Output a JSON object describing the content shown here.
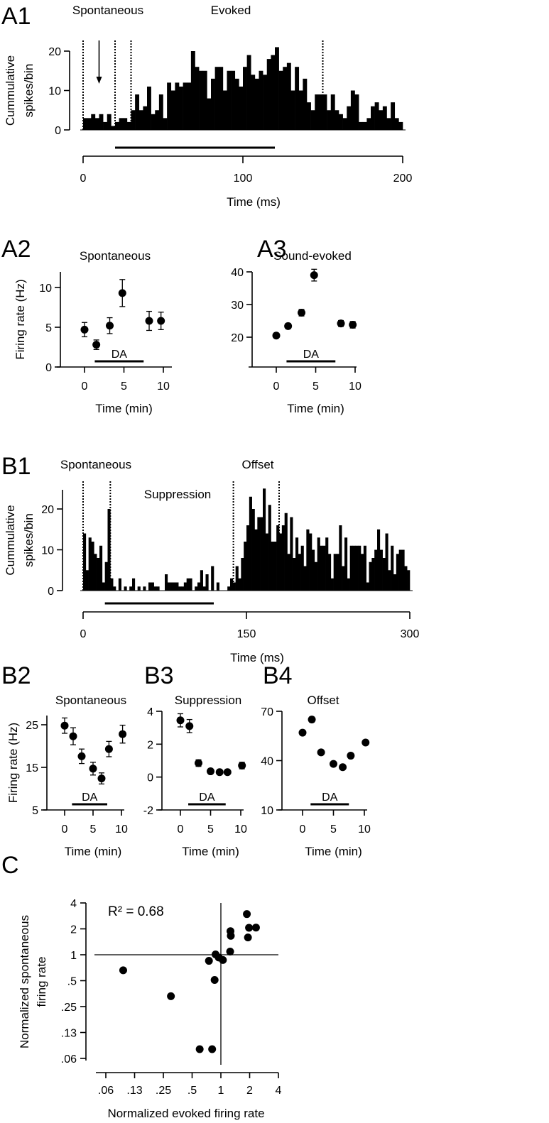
{
  "chart_data": [
    {
      "panel": "A1",
      "type": "bar",
      "xlabel": "Time (ms)",
      "ylabel_lines": [
        "Cummulative",
        "spikes/bin"
      ],
      "xlim": [
        0,
        200
      ],
      "xticks": [
        0,
        100,
        200
      ],
      "xtick_labels": [
        "0",
        "100",
        "200"
      ],
      "ylim": [
        0,
        20
      ],
      "yticks": [
        0,
        10,
        20
      ],
      "ytick_labels": [
        "0",
        "10",
        "20"
      ],
      "bin_width_ms": 2.5,
      "values": [
        3,
        3,
        4,
        3,
        4,
        2,
        4,
        1,
        2,
        3,
        3,
        2,
        5,
        9,
        5,
        6,
        11,
        4,
        5,
        9,
        3,
        12,
        10,
        12,
        11,
        12,
        12,
        20,
        16,
        15,
        15,
        8,
        13,
        16,
        16,
        10,
        15,
        15,
        13,
        11,
        16,
        19,
        14,
        13,
        15,
        14,
        18,
        19,
        21,
        15,
        16,
        17,
        10,
        16,
        10,
        13,
        7,
        5,
        9,
        9,
        9,
        5,
        9,
        5,
        4,
        3,
        6,
        10,
        9,
        2,
        2,
        3,
        6,
        7,
        5,
        6,
        3,
        7,
        3,
        2
      ],
      "annotations": [
        "Spontaneous",
        "Evoked"
      ],
      "dashed_lines_ms": [
        0,
        20,
        30,
        150
      ],
      "arrow_ms": 10,
      "stimulus_bar_ms": [
        20,
        120
      ]
    },
    {
      "panel": "A2",
      "type": "scatter",
      "title": "Spontaneous",
      "xlabel": "Time (min)",
      "ylabel": "Firing rate (Hz)",
      "xticks": [
        0,
        5,
        10
      ],
      "xtick_labels": [
        "0",
        "5",
        "10"
      ],
      "yticks": [
        0,
        5,
        10
      ],
      "ytick_labels": [
        "0",
        "5",
        "10"
      ],
      "x": [
        0,
        1.5,
        3.2,
        4.8,
        8.2,
        9.7
      ],
      "y": [
        4.7,
        2.8,
        5.2,
        9.3,
        5.8,
        5.8
      ],
      "err": [
        0.9,
        0.6,
        1.0,
        1.7,
        1.2,
        1.1
      ],
      "drug_label": "DA",
      "drug_min": [
        1.3,
        7.5
      ]
    },
    {
      "panel": "A3",
      "type": "scatter",
      "title": "Sound-evoked",
      "xlabel": "Time (min)",
      "xticks": [
        0,
        5,
        10
      ],
      "xtick_labels": [
        "0",
        "5",
        "10"
      ],
      "yticks": [
        20,
        30,
        40
      ],
      "ytick_labels": [
        "20",
        "30",
        "40"
      ],
      "x": [
        0,
        1.5,
        3.2,
        4.8,
        8.2,
        9.7
      ],
      "y": [
        20.5,
        23.4,
        27.5,
        39.0,
        24.2,
        23.8
      ],
      "err": [
        0.6,
        0.8,
        1.0,
        1.8,
        0.9,
        1.0
      ],
      "drug_label": "DA",
      "drug_min": [
        1.3,
        7.5
      ]
    },
    {
      "panel": "B1",
      "type": "bar",
      "xlabel": "Time (ms)",
      "ylabel_lines": [
        "Cummulative",
        "spikes/bin"
      ],
      "xlim": [
        0,
        300
      ],
      "xticks": [
        0,
        150,
        300
      ],
      "xtick_labels": [
        "0",
        "150",
        "300"
      ],
      "ylim": [
        0,
        20
      ],
      "yticks": [
        0,
        10,
        20
      ],
      "ytick_labels": [
        "0",
        "10",
        "20"
      ],
      "bin_width_ms": 2.5,
      "values": [
        14,
        5,
        13,
        12,
        9,
        8,
        11,
        2,
        7,
        20,
        3,
        1,
        0,
        3,
        0,
        1,
        0,
        1,
        3,
        0,
        1,
        0,
        1,
        0,
        2,
        2,
        1,
        1,
        0,
        0,
        4,
        2,
        2,
        2,
        2,
        1,
        1,
        2,
        3,
        3,
        0,
        1,
        2,
        5,
        1,
        4,
        0,
        6,
        0,
        2,
        0,
        0,
        0,
        1,
        3,
        2,
        6,
        3,
        8,
        12,
        16,
        23,
        20,
        15,
        18,
        18,
        25,
        14,
        21,
        12,
        12,
        16,
        14,
        16,
        19,
        9,
        18,
        8,
        13,
        9,
        11,
        6,
        15,
        14,
        10,
        7,
        13,
        11,
        11,
        13,
        9,
        3,
        9,
        9,
        16,
        6,
        13,
        3,
        11,
        11,
        11,
        11,
        9,
        11,
        2,
        7,
        8,
        10,
        15,
        10,
        8,
        14,
        5,
        11,
        4,
        9,
        10,
        10,
        6,
        5
      ],
      "annotations": [
        "Spontaneous",
        "Offset",
        "Suppression"
      ],
      "dashed_lines_ms": [
        0,
        25,
        138,
        180
      ],
      "stimulus_bar_ms": [
        20,
        120
      ]
    },
    {
      "panel": "B2",
      "type": "scatter",
      "title": "Spontaneous",
      "xlabel": "Time (min)",
      "ylabel": "Firing rate (Hz)",
      "xticks": [
        0,
        5,
        10
      ],
      "xtick_labels": [
        "0",
        "5",
        "10"
      ],
      "yticks": [
        5,
        15,
        25
      ],
      "ytick_labels": [
        "5",
        "15",
        "25"
      ],
      "x": [
        0,
        1.5,
        3,
        5,
        6.5,
        7.8,
        10.2
      ],
      "y": [
        24.8,
        22.3,
        17.6,
        14.7,
        12.4,
        19.3,
        22.8
      ],
      "err": [
        1.8,
        2.0,
        1.7,
        1.5,
        1.3,
        1.8,
        2.1
      ],
      "drug_label": "DA",
      "drug_min": [
        1.3,
        7.5
      ]
    },
    {
      "panel": "B3",
      "type": "scatter",
      "title": "Suppression",
      "xlabel": "Time (min)",
      "xticks": [
        0,
        5,
        10
      ],
      "xtick_labels": [
        "0",
        "5",
        "10"
      ],
      "yticks": [
        -2,
        0,
        2,
        4
      ],
      "ytick_labels": [
        "-2",
        "0",
        "2",
        "4"
      ],
      "x": [
        0,
        1.5,
        3,
        5,
        6.5,
        7.8,
        10.2
      ],
      "y": [
        3.45,
        3.1,
        0.85,
        0.35,
        0.3,
        0.3,
        0.7
      ],
      "err": [
        0.4,
        0.4,
        0.2,
        0.1,
        0.1,
        0.1,
        0.2
      ],
      "drug_label": "DA",
      "drug_min": [
        1.3,
        7.5
      ]
    },
    {
      "panel": "B4",
      "type": "scatter",
      "title": "Offset",
      "xlabel": "Time (min)",
      "xticks": [
        0,
        5,
        10
      ],
      "xtick_labels": [
        "0",
        "5",
        "10"
      ],
      "yticks": [
        10,
        40,
        70
      ],
      "ytick_labels": [
        "10",
        "40",
        "70"
      ],
      "x": [
        0,
        1.5,
        3,
        5,
        6.5,
        7.8,
        10.2
      ],
      "y": [
        57,
        65,
        45,
        38,
        36,
        43,
        51
      ],
      "err": [
        1,
        1.5,
        1,
        0.8,
        0.8,
        1,
        1
      ],
      "drug_label": "DA",
      "drug_min": [
        1.3,
        7.5
      ]
    },
    {
      "panel": "C",
      "type": "scatter",
      "scale": "log2",
      "xlabel": "Normalized evoked firing rate",
      "ylabel_lines": [
        "Normalized spontaneous",
        "firing rate"
      ],
      "xticks": [
        0.0625,
        0.125,
        0.25,
        0.5,
        1,
        2,
        4
      ],
      "xtick_labels": [
        ".06",
        ".13",
        ".25",
        ".5",
        "1",
        "2",
        "4"
      ],
      "yticks": [
        0.0625,
        0.125,
        0.25,
        0.5,
        1,
        2,
        4
      ],
      "ytick_labels": [
        ".06",
        ".13",
        ".25",
        ".5",
        "1",
        "2",
        "4"
      ],
      "annotation": "R² = 0.68",
      "reference_lines": {
        "x": 1,
        "y": 1
      },
      "points": [
        [
          1.87,
          2.97
        ],
        [
          1.97,
          2.06
        ],
        [
          2.33,
          2.07
        ],
        [
          1.26,
          1.88
        ],
        [
          1.27,
          1.66
        ],
        [
          1.92,
          1.59
        ],
        [
          1.25,
          1.09
        ],
        [
          0.88,
          1.01
        ],
        [
          0.95,
          0.93
        ],
        [
          1.05,
          0.87
        ],
        [
          0.75,
          0.85
        ],
        [
          0.86,
          0.51
        ],
        [
          0.095,
          0.66
        ],
        [
          0.3,
          0.33
        ],
        [
          0.6,
          0.08
        ],
        [
          0.81,
          0.08
        ]
      ]
    }
  ]
}
